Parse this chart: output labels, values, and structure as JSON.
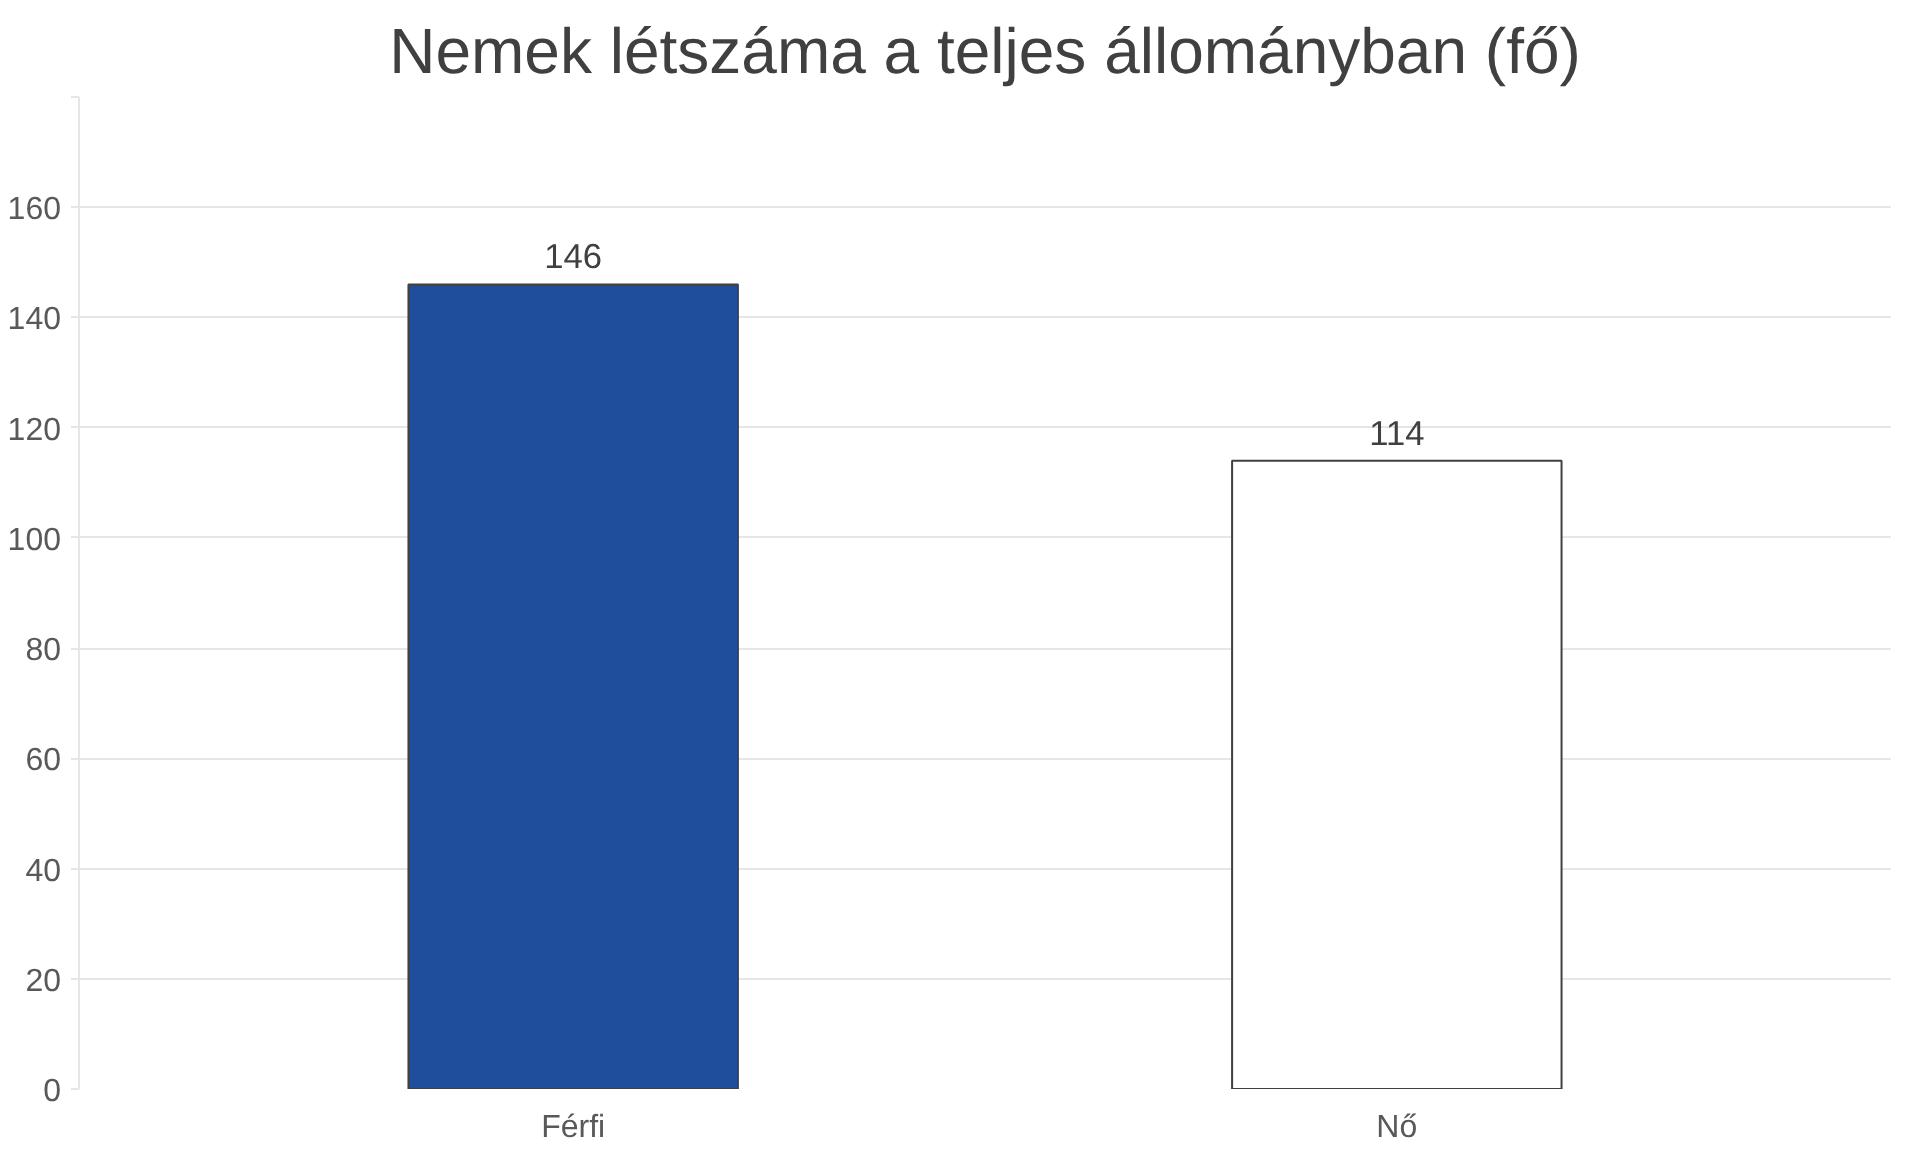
{
  "chart_data": {
    "type": "bar",
    "title": "Nemek létszáma a teljes állományban (fő)",
    "categories": [
      "Férfi",
      "Nő"
    ],
    "values": [
      146,
      114
    ],
    "colors": [
      "#1f4e9c",
      "#ffffff"
    ],
    "ylim": [
      0,
      180
    ],
    "yticks": [
      0,
      20,
      40,
      60,
      80,
      100,
      120,
      140,
      160,
      {
        "value": 180,
        "label": null
      }
    ],
    "grid": "y",
    "data_labels": true
  }
}
